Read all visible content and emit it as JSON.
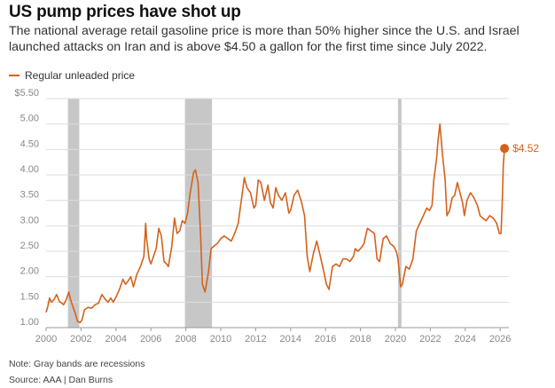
{
  "title": "US pump prices have shot up",
  "subtitle": "The national average retail gasoline price is more than 50% higher since the U.S. and Israel launched attacks on Iran and is above $4.50 a gallon for the first time since July 2022.",
  "note": "Note: Gray bands are recessions",
  "source": "Source: AAA | Dan Burns",
  "colors": {
    "line": "#d4621b",
    "recession": "#c7c7c7",
    "grid": "#dddddd",
    "axis": "#888888"
  },
  "chart_data": {
    "type": "line",
    "xlabel": "",
    "ylabel": "",
    "xlim": [
      2000,
      2026.5
    ],
    "ylim": [
      1.0,
      5.5
    ],
    "grid": true,
    "legend_position": "top-left",
    "x_ticks": [
      "2000",
      "2002",
      "2004",
      "2006",
      "2008",
      "2010",
      "2012",
      "2014",
      "2016",
      "2018",
      "2020",
      "2022",
      "2024",
      "2026"
    ],
    "y_ticks": [
      "$5.50",
      "5.00",
      "4.50",
      "4.00",
      "3.50",
      "3.00",
      "2.50",
      "2.00",
      "1.50",
      "1.00"
    ],
    "y_tick_values": [
      5.5,
      5.0,
      4.5,
      4.0,
      3.5,
      3.0,
      2.5,
      2.0,
      1.5,
      1.0
    ],
    "recessions": [
      {
        "start": 2001.25,
        "end": 2001.9
      },
      {
        "start": 2007.95,
        "end": 2009.5
      },
      {
        "start": 2020.15,
        "end": 2020.35
      }
    ],
    "series": [
      {
        "name": "Regular unleaded price",
        "x": [
          2000.0,
          2000.1,
          2000.2,
          2000.3,
          2000.45,
          2000.6,
          2000.75,
          2000.9,
          2001.0,
          2001.15,
          2001.3,
          2001.4,
          2001.5,
          2001.65,
          2001.8,
          2001.95,
          2002.05,
          2002.2,
          2002.4,
          2002.6,
          2002.8,
          2003.0,
          2003.2,
          2003.4,
          2003.55,
          2003.7,
          2003.85,
          2004.0,
          2004.2,
          2004.4,
          2004.55,
          2004.7,
          2004.85,
          2005.0,
          2005.2,
          2005.4,
          2005.6,
          2005.7,
          2005.75,
          2005.9,
          2006.0,
          2006.3,
          2006.45,
          2006.6,
          2006.75,
          2006.9,
          2007.0,
          2007.2,
          2007.35,
          2007.5,
          2007.65,
          2007.8,
          2007.95,
          2008.1,
          2008.25,
          2008.45,
          2008.55,
          2008.7,
          2008.85,
          2008.95,
          2009.1,
          2009.3,
          2009.45,
          2009.6,
          2009.8,
          2010.0,
          2010.2,
          2010.4,
          2010.6,
          2010.8,
          2011.0,
          2011.2,
          2011.35,
          2011.5,
          2011.7,
          2011.9,
          2012.0,
          2012.15,
          2012.3,
          2012.5,
          2012.7,
          2012.85,
          2013.0,
          2013.15,
          2013.3,
          2013.5,
          2013.7,
          2013.9,
          2014.0,
          2014.2,
          2014.4,
          2014.6,
          2014.8,
          2014.95,
          2015.1,
          2015.3,
          2015.5,
          2015.7,
          2015.9,
          2016.05,
          2016.2,
          2016.4,
          2016.6,
          2016.8,
          2017.0,
          2017.2,
          2017.4,
          2017.6,
          2017.7,
          2017.85,
          2018.0,
          2018.2,
          2018.4,
          2018.6,
          2018.8,
          2018.95,
          2019.1,
          2019.3,
          2019.5,
          2019.7,
          2019.9,
          2020.05,
          2020.15,
          2020.3,
          2020.4,
          2020.6,
          2020.8,
          2021.0,
          2021.2,
          2021.4,
          2021.6,
          2021.8,
          2021.95,
          2022.1,
          2022.2,
          2022.35,
          2022.45,
          2022.55,
          2022.7,
          2022.85,
          2022.95,
          2023.1,
          2023.25,
          2023.4,
          2023.55,
          2023.7,
          2023.85,
          2023.95,
          2024.1,
          2024.3,
          2024.5,
          2024.7,
          2024.85,
          2025.0,
          2025.2,
          2025.4,
          2025.6,
          2025.8,
          2025.95,
          2026.05,
          2026.12,
          2026.18,
          2026.25
        ],
        "y": [
          1.3,
          1.42,
          1.58,
          1.5,
          1.55,
          1.65,
          1.52,
          1.48,
          1.45,
          1.55,
          1.7,
          1.55,
          1.45,
          1.3,
          1.12,
          1.1,
          1.15,
          1.35,
          1.4,
          1.38,
          1.45,
          1.48,
          1.65,
          1.55,
          1.5,
          1.58,
          1.5,
          1.6,
          1.75,
          1.95,
          1.85,
          1.92,
          2.0,
          1.8,
          2.05,
          2.2,
          2.4,
          3.05,
          2.75,
          2.35,
          2.25,
          2.55,
          2.95,
          2.8,
          2.3,
          2.25,
          2.2,
          2.6,
          3.15,
          2.85,
          2.9,
          3.1,
          3.05,
          3.25,
          3.65,
          4.05,
          4.1,
          3.85,
          2.8,
          1.85,
          1.7,
          2.1,
          2.55,
          2.6,
          2.65,
          2.75,
          2.8,
          2.75,
          2.7,
          2.85,
          3.05,
          3.55,
          3.95,
          3.75,
          3.65,
          3.35,
          3.4,
          3.9,
          3.85,
          3.5,
          3.8,
          3.45,
          3.35,
          3.75,
          3.6,
          3.5,
          3.65,
          3.25,
          3.3,
          3.6,
          3.7,
          3.5,
          3.2,
          2.4,
          2.1,
          2.45,
          2.7,
          2.4,
          2.1,
          1.85,
          1.75,
          2.2,
          2.25,
          2.2,
          2.35,
          2.35,
          2.3,
          2.4,
          2.55,
          2.5,
          2.55,
          2.65,
          2.95,
          2.9,
          2.85,
          2.35,
          2.3,
          2.75,
          2.8,
          2.65,
          2.6,
          2.5,
          2.35,
          1.8,
          1.85,
          2.2,
          2.15,
          2.35,
          2.9,
          3.05,
          3.2,
          3.35,
          3.3,
          3.4,
          3.9,
          4.3,
          4.7,
          5.0,
          4.4,
          3.9,
          3.2,
          3.3,
          3.55,
          3.6,
          3.85,
          3.65,
          3.45,
          3.2,
          3.5,
          3.65,
          3.55,
          3.4,
          3.2,
          3.15,
          3.1,
          3.2,
          3.15,
          3.05,
          2.85,
          2.85,
          3.45,
          4.2,
          4.52
        ]
      }
    ],
    "annotations": [
      {
        "text": "$4.52",
        "x": 2026.25,
        "y": 4.52
      }
    ]
  }
}
